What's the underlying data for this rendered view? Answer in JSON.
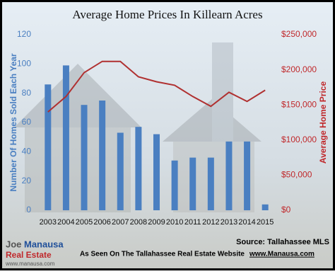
{
  "chart_data": {
    "type": "bar_line",
    "title": "Average Home Prices In Killearn Acres",
    "ylabel": "Number Of Homes Sold Each Year",
    "y2label": "Average Home Price",
    "categories": [
      "2003",
      "2004",
      "2005",
      "2006",
      "2007",
      "2008",
      "2009",
      "2010",
      "2011",
      "2012",
      "2013",
      "2014",
      "2015"
    ],
    "series": [
      {
        "name": "Homes Sold",
        "type": "bar",
        "color": "#4a7fc1",
        "values": [
          86,
          99,
          72,
          75,
          53,
          57,
          52,
          34,
          36,
          36,
          47,
          47,
          4
        ]
      },
      {
        "name": "Average Home Price",
        "type": "line",
        "axis": "y2",
        "color": "#b03030",
        "values": [
          140000,
          162000,
          196000,
          212000,
          212000,
          190000,
          183000,
          178000,
          162000,
          148000,
          168000,
          155000,
          171000
        ]
      }
    ],
    "ylim": [
      0,
      120
    ],
    "yticks": [
      0,
      20,
      40,
      60,
      80,
      100,
      120
    ],
    "y2lim": [
      0,
      250000
    ],
    "y2ticks": [
      {
        "value": 0,
        "label": "$0"
      },
      {
        "value": 50000,
        "label": "$50,000"
      },
      {
        "value": 100000,
        "label": "$100,000"
      },
      {
        "value": 150000,
        "label": "$150,000"
      },
      {
        "value": 200000,
        "label": "$200,000"
      },
      {
        "value": 250000,
        "label": "$250,000"
      }
    ],
    "source": "Source: Tallahassee MLS",
    "footer": "As Seen On The Tallahassee Real Estate Website",
    "footer_link": "www.Manausa.com",
    "logo": {
      "first": "Joe",
      "last": "Manausa",
      "sub": "Real Estate",
      "url": "www.manausa.com"
    }
  }
}
